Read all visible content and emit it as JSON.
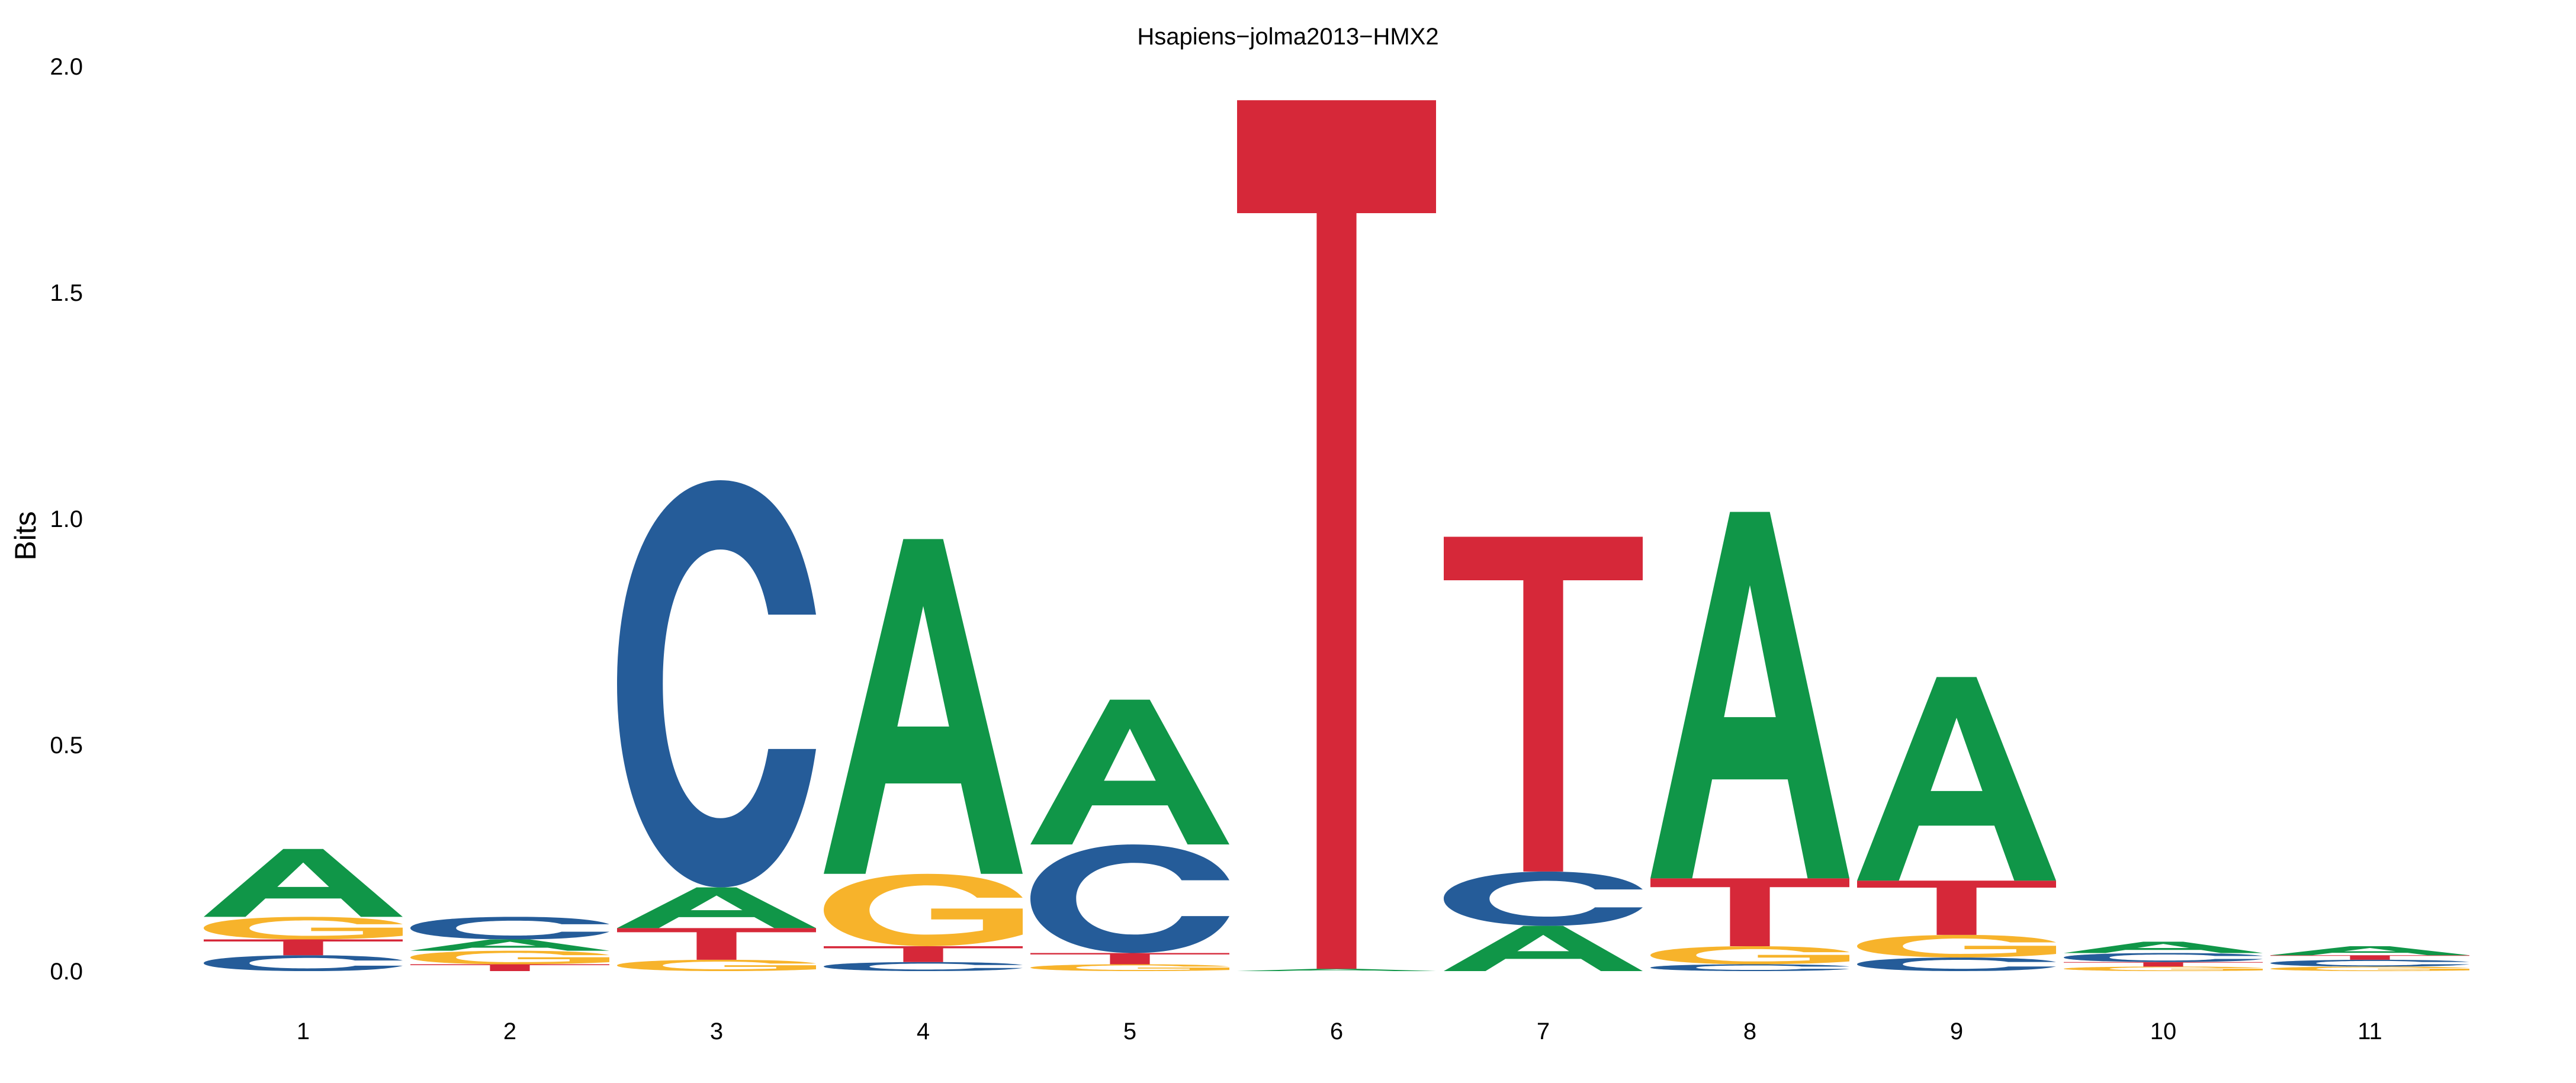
{
  "chart_data": {
    "type": "sequence-logo",
    "title": "Hsapiens−jolma2013−HMX2",
    "ylabel": "Bits",
    "xlabel": "",
    "ylim": [
      0,
      2.0
    ],
    "yticks": [
      "0.0",
      "0.5",
      "1.0",
      "1.5",
      "2.0"
    ],
    "categories": [
      "1",
      "2",
      "3",
      "4",
      "5",
      "6",
      "7",
      "8",
      "9",
      "10",
      "11"
    ],
    "colors": {
      "A": "#109648",
      "C": "#255c99",
      "G": "#f7b32b",
      "T": "#d62839"
    },
    "columns": [
      [
        {
          "letter": "C",
          "bits": 0.035
        },
        {
          "letter": "T",
          "bits": 0.035
        },
        {
          "letter": "G",
          "bits": 0.05
        },
        {
          "letter": "A",
          "bits": 0.15
        }
      ],
      [
        {
          "letter": "T",
          "bits": 0.015
        },
        {
          "letter": "G",
          "bits": 0.03
        },
        {
          "letter": "A",
          "bits": 0.025
        },
        {
          "letter": "C",
          "bits": 0.05
        }
      ],
      [
        {
          "letter": "G",
          "bits": 0.025
        },
        {
          "letter": "T",
          "bits": 0.07
        },
        {
          "letter": "A",
          "bits": 0.09
        },
        {
          "letter": "C",
          "bits": 0.9
        }
      ],
      [
        {
          "letter": "C",
          "bits": 0.02
        },
        {
          "letter": "T",
          "bits": 0.035
        },
        {
          "letter": "G",
          "bits": 0.16
        },
        {
          "letter": "A",
          "bits": 0.74
        }
      ],
      [
        {
          "letter": "G",
          "bits": 0.015
        },
        {
          "letter": "T",
          "bits": 0.025
        },
        {
          "letter": "C",
          "bits": 0.24
        },
        {
          "letter": "A",
          "bits": 0.32
        }
      ],
      [
        {
          "letter": "A",
          "bits": 0.005
        },
        {
          "letter": "T",
          "bits": 1.92
        }
      ],
      [
        {
          "letter": "A",
          "bits": 0.1
        },
        {
          "letter": "C",
          "bits": 0.12
        },
        {
          "letter": "T",
          "bits": 0.74
        }
      ],
      [
        {
          "letter": "C",
          "bits": 0.015
        },
        {
          "letter": "G",
          "bits": 0.04
        },
        {
          "letter": "T",
          "bits": 0.15
        },
        {
          "letter": "A",
          "bits": 0.81
        }
      ],
      [
        {
          "letter": "C",
          "bits": 0.03
        },
        {
          "letter": "G",
          "bits": 0.05
        },
        {
          "letter": "T",
          "bits": 0.12
        },
        {
          "letter": "A",
          "bits": 0.45
        }
      ],
      [
        {
          "letter": "G",
          "bits": 0.01
        },
        {
          "letter": "T",
          "bits": 0.01
        },
        {
          "letter": "C",
          "bits": 0.02
        },
        {
          "letter": "A",
          "bits": 0.025
        }
      ],
      [
        {
          "letter": "G",
          "bits": 0.01
        },
        {
          "letter": "C",
          "bits": 0.015
        },
        {
          "letter": "T",
          "bits": 0.01
        },
        {
          "letter": "A",
          "bits": 0.02
        }
      ]
    ]
  }
}
